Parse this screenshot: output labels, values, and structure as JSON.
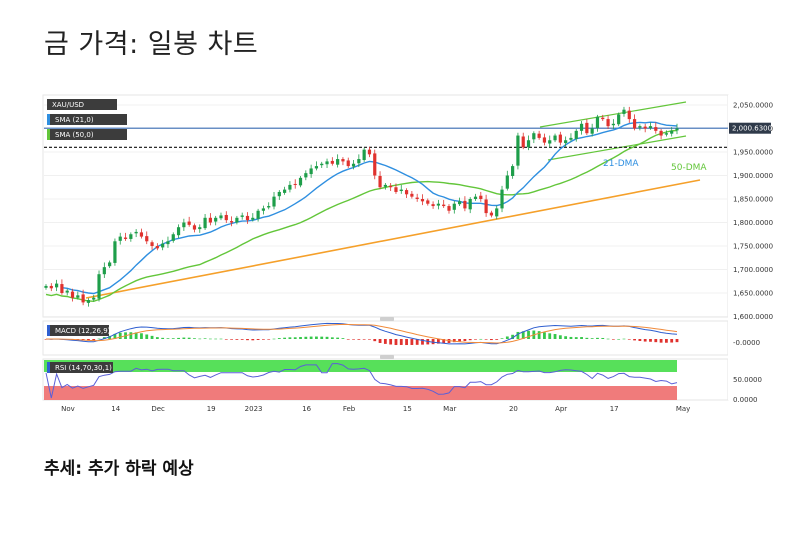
{
  "title": "금 가격: 일봉 차트",
  "trend": "추세: 추가 하락 예상",
  "chart_data": {
    "type": "candlestick",
    "symbol": "XAU/USD",
    "indicators": {
      "sma21": {
        "label": "SMA (21,0)",
        "color": "#2f8fe0",
        "annotation": "21-DMA"
      },
      "sma50": {
        "label": "SMA (50,0)",
        "color": "#63c63a",
        "annotation": "50-DMA"
      },
      "macd": {
        "label": "MACD (12,26,9)"
      },
      "rsi": {
        "label": "RSI (14,70,30,1)"
      }
    },
    "price_axis": {
      "range": [
        1580,
        2065
      ],
      "ticks": [
        "2,050.0000",
        "2,000.0000",
        "1,950.0000",
        "1,900.0000",
        "1,850.0000",
        "1,800.0000",
        "1,750.0000",
        "1,700.0000",
        "1,650.0000",
        "1,600.0000"
      ],
      "tick_values": [
        2050,
        2000,
        1950,
        1900,
        1850,
        1800,
        1750,
        1700,
        1650,
        1600
      ],
      "current_price_label": "2,000.6300",
      "current_price": 2000.63
    },
    "macd_axis": {
      "ticks": [
        "-0.0000"
      ]
    },
    "rsi_axis": {
      "ticks": [
        "50.0000",
        "0.0000"
      ]
    },
    "x_labels": [
      "Nov",
      "14",
      "Dec",
      "19",
      "2023",
      "16",
      "Feb",
      "15",
      "Mar",
      "20",
      "Apr",
      "17",
      "May"
    ],
    "horizontal_levels": [
      {
        "value": 2000.63,
        "style": "solid",
        "color": "#3a6db5"
      },
      {
        "value": 1960,
        "style": "dashed",
        "color": "#111111"
      }
    ],
    "closes": [
      1665,
      1660,
      1670,
      1650,
      1655,
      1640,
      1645,
      1630,
      1635,
      1640,
      1690,
      1705,
      1715,
      1760,
      1770,
      1765,
      1775,
      1780,
      1770,
      1760,
      1750,
      1745,
      1755,
      1760,
      1775,
      1790,
      1800,
      1795,
      1785,
      1790,
      1810,
      1800,
      1810,
      1815,
      1805,
      1800,
      1810,
      1815,
      1805,
      1810,
      1825,
      1830,
      1835,
      1855,
      1865,
      1870,
      1880,
      1880,
      1895,
      1905,
      1915,
      1920,
      1925,
      1930,
      1925,
      1935,
      1930,
      1920,
      1925,
      1935,
      1955,
      1945,
      1900,
      1875,
      1880,
      1875,
      1865,
      1870,
      1860,
      1855,
      1850,
      1845,
      1840,
      1835,
      1840,
      1835,
      1825,
      1840,
      1845,
      1830,
      1850,
      1855,
      1850,
      1820,
      1815,
      1830,
      1870,
      1900,
      1920,
      1985,
      1960,
      1975,
      1990,
      1980,
      1970,
      1975,
      1985,
      1970,
      1975,
      1980,
      1995,
      2010,
      1990,
      2000,
      2025,
      2020,
      2005,
      2010,
      2030,
      2040,
      2020,
      2000,
      2005,
      2000,
      2005,
      1995,
      1985,
      1990,
      1995,
      2000
    ],
    "x_label_index": [
      0,
      9,
      17,
      27,
      35,
      45,
      53,
      64,
      72,
      84,
      93,
      103,
      116
    ]
  }
}
